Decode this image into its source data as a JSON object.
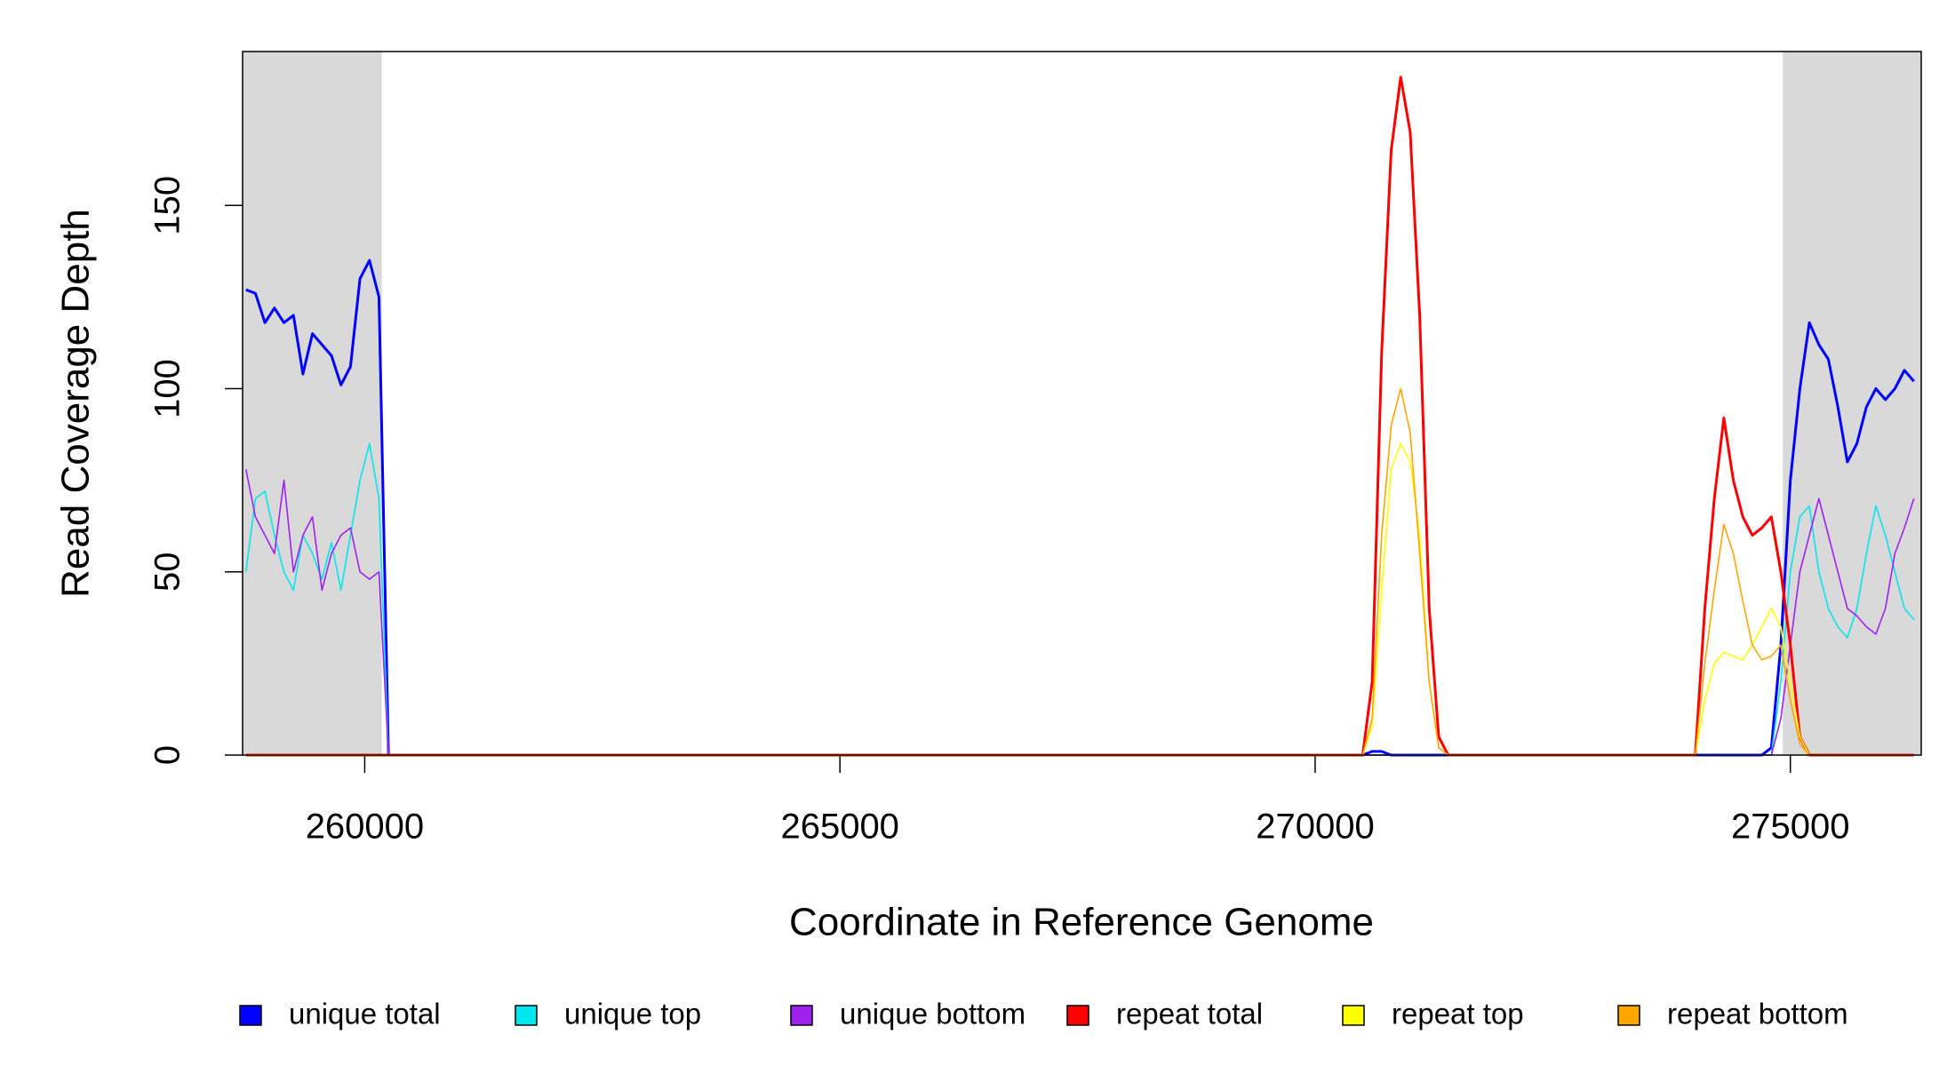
{
  "chart_data": {
    "type": "line",
    "x_label": "Coordinate in Reference Genome",
    "y_label": "Read Coverage Depth",
    "xlim": [
      258715,
      276377
    ],
    "ylim": [
      0,
      192
    ],
    "xticks": [
      260000,
      265000,
      270000,
      275000
    ],
    "yticks": [
      0,
      50,
      100,
      150
    ],
    "shaded_regions": [
      [
        258715,
        260180
      ],
      [
        274920,
        276377
      ]
    ],
    "shade_color": "#d9d9d9",
    "x": [
      258750,
      258850,
      258950,
      259050,
      259150,
      259250,
      259350,
      259450,
      259550,
      259650,
      259750,
      259850,
      259950,
      260050,
      260150,
      260250,
      261000,
      265000,
      270000,
      270500,
      270600,
      270700,
      270800,
      270900,
      271000,
      271100,
      271200,
      271300,
      271400,
      272500,
      273500,
      274000,
      274100,
      274200,
      274300,
      274400,
      274500,
      274600,
      274700,
      274800,
      274900,
      275000,
      275100,
      275200,
      275300,
      275400,
      275500,
      275600,
      275700,
      275800,
      275900,
      276000,
      276100,
      276200,
      276300
    ],
    "series": [
      {
        "name": "unique total",
        "color": "#0000ff",
        "width": 3,
        "values": [
          127,
          126,
          118,
          122,
          118,
          120,
          104,
          115,
          112,
          109,
          101,
          106,
          130,
          135,
          125,
          0,
          0,
          0,
          0,
          0,
          1,
          1,
          0,
          0,
          0,
          0,
          0,
          0,
          0,
          0,
          0,
          0,
          0,
          0,
          0,
          0,
          0,
          0,
          0,
          2,
          30,
          75,
          100,
          118,
          112,
          108,
          95,
          80,
          85,
          95,
          100,
          97,
          100,
          105,
          102
        ]
      },
      {
        "name": "unique top",
        "color": "#00e5ee",
        "width": 1.6,
        "values": [
          50,
          70,
          72,
          60,
          50,
          45,
          60,
          55,
          48,
          58,
          45,
          60,
          75,
          85,
          70,
          0,
          0,
          0,
          0,
          0,
          0,
          0,
          0,
          0,
          0,
          0,
          0,
          0,
          0,
          0,
          0,
          0,
          0,
          0,
          0,
          0,
          0,
          0,
          0,
          0,
          20,
          50,
          65,
          68,
          50,
          40,
          35,
          32,
          40,
          55,
          68,
          60,
          50,
          40,
          37
        ]
      },
      {
        "name": "unique bottom",
        "color": "#a020f0",
        "width": 1.6,
        "values": [
          78,
          65,
          60,
          55,
          75,
          50,
          60,
          65,
          45,
          55,
          60,
          62,
          50,
          48,
          50,
          0,
          0,
          0,
          0,
          0,
          0,
          0,
          0,
          0,
          0,
          0,
          0,
          0,
          0,
          0,
          0,
          0,
          0,
          0,
          0,
          0,
          0,
          0,
          0,
          0,
          10,
          30,
          50,
          60,
          70,
          60,
          50,
          40,
          38,
          35,
          33,
          40,
          55,
          62,
          70
        ]
      },
      {
        "name": "repeat total",
        "color": "#ff0000",
        "width": 3,
        "values": [
          0,
          0,
          0,
          0,
          0,
          0,
          0,
          0,
          0,
          0,
          0,
          0,
          0,
          0,
          0,
          0,
          0,
          0,
          0,
          0,
          20,
          110,
          165,
          185,
          170,
          120,
          40,
          5,
          0,
          0,
          0,
          0,
          40,
          70,
          92,
          75,
          65,
          60,
          62,
          65,
          50,
          30,
          5,
          0,
          0,
          0,
          0,
          0,
          0,
          0,
          0,
          0,
          0,
          0,
          0
        ]
      },
      {
        "name": "repeat top",
        "color": "#ffff00",
        "width": 1.6,
        "values": [
          0,
          0,
          0,
          0,
          0,
          0,
          0,
          0,
          0,
          0,
          0,
          0,
          0,
          0,
          0,
          0,
          0,
          0,
          0,
          0,
          8,
          45,
          78,
          85,
          80,
          60,
          20,
          2,
          0,
          0,
          0,
          0,
          15,
          25,
          28,
          27,
          26,
          30,
          35,
          40,
          35,
          20,
          5,
          0,
          0,
          0,
          0,
          0,
          0,
          0,
          0,
          0,
          0,
          0,
          0
        ]
      },
      {
        "name": "repeat bottom",
        "color": "#ffa500",
        "width": 1.6,
        "values": [
          0,
          0,
          0,
          0,
          0,
          0,
          0,
          0,
          0,
          0,
          0,
          0,
          0,
          0,
          0,
          0,
          0,
          0,
          0,
          0,
          10,
          60,
          90,
          100,
          88,
          55,
          20,
          2,
          0,
          0,
          0,
          0,
          25,
          45,
          63,
          55,
          42,
          30,
          26,
          27,
          30,
          15,
          3,
          0,
          0,
          0,
          0,
          0,
          0,
          0,
          0,
          0,
          0,
          0,
          0
        ]
      }
    ]
  }
}
